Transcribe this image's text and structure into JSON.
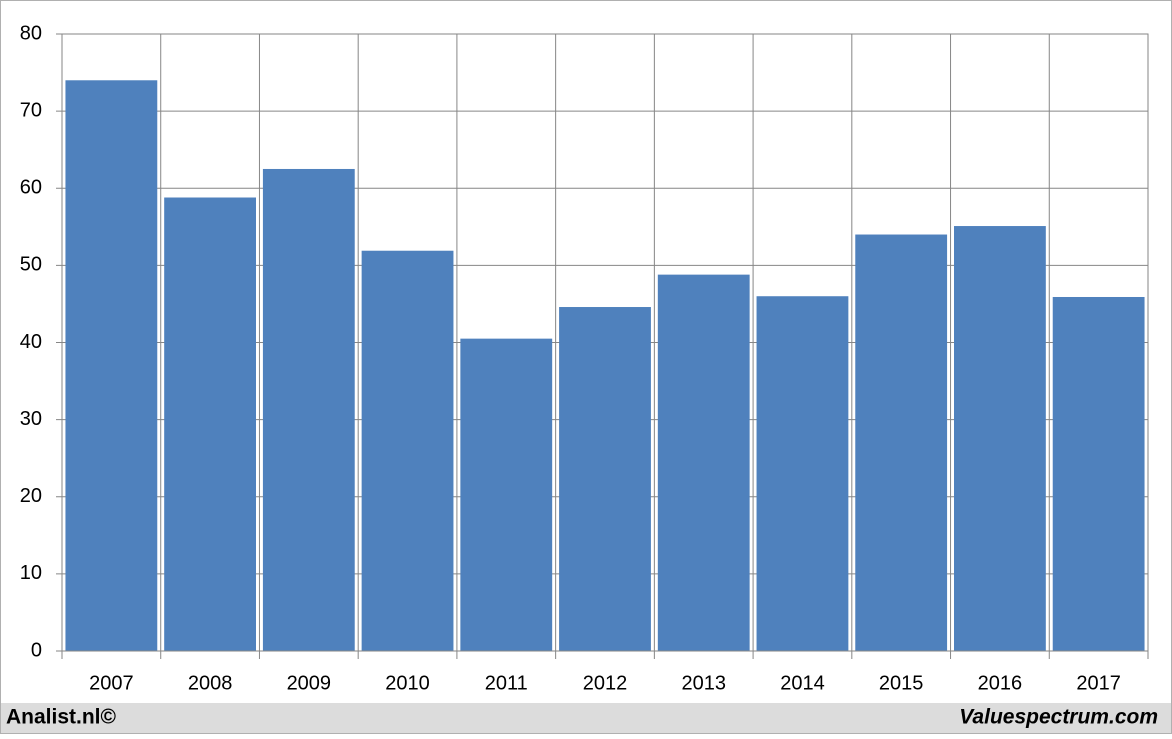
{
  "chart_data": {
    "type": "bar",
    "categories": [
      "2007",
      "2008",
      "2009",
      "2010",
      "2011",
      "2012",
      "2013",
      "2014",
      "2015",
      "2016",
      "2017"
    ],
    "values": [
      74,
      58.8,
      62.5,
      51.9,
      40.5,
      44.6,
      48.8,
      46,
      54,
      55.1,
      45.9
    ],
    "color": "#4f81bd",
    "ylim": [
      0,
      80
    ],
    "yticks": [
      0,
      10,
      20,
      30,
      40,
      50,
      60,
      70,
      80
    ],
    "grid": true,
    "footer_left": "Analist.nl©",
    "footer_right": "Valuespectrum.com"
  }
}
